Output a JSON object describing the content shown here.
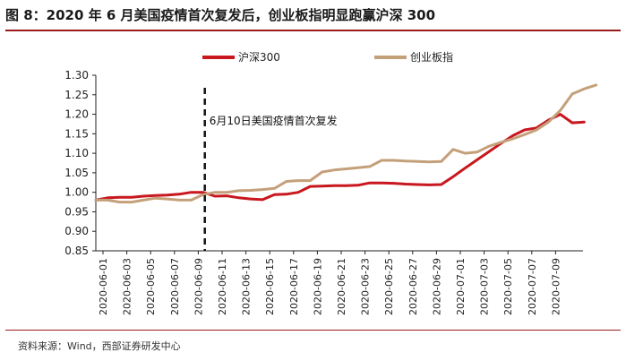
{
  "figure": {
    "title": "图 8：2020 年 6 月美国疫情首次复发后，创业板指明显跑赢沪深 300",
    "source": "资料来源：Wind，西部证券研发中心"
  },
  "colors": {
    "hs300": "#c8171e",
    "chinext": "#c4a07a",
    "rule": "#9b1b1b",
    "axis": "#222222"
  },
  "chart_data": {
    "type": "line",
    "title": "",
    "xlabel": "",
    "ylabel": "",
    "ylim": [
      0.85,
      1.3
    ],
    "yticks": [
      "0.85",
      "0.90",
      "0.95",
      "1.00",
      "1.05",
      "1.10",
      "1.15",
      "1.20",
      "1.25",
      "1.30"
    ],
    "x_tick_labels": [
      "2020-06-01",
      "2020-06-03",
      "2020-06-05",
      "2020-06-07",
      "2020-06-09",
      "2020-06-11",
      "2020-06-13",
      "2020-06-15",
      "2020-06-17",
      "2020-06-19",
      "2020-06-21",
      "2020-06-23",
      "2020-06-25",
      "2020-06-27",
      "2020-06-29",
      "2020-07-01",
      "2020-07-03",
      "2020-07-05",
      "2020-07-07",
      "2020-07-09"
    ],
    "x_start": "2020-06-01",
    "x_end": "2020-07-10",
    "legend": {
      "position": "top-center"
    },
    "annotation": {
      "date_index": 9.15,
      "label": "6月10日美国疫情首次复发"
    },
    "series": [
      {
        "name": "沪深300",
        "color_key": "hs300",
        "points": [
          [
            0,
            0.98
          ],
          [
            1,
            0.986
          ],
          [
            2,
            0.987
          ],
          [
            3,
            0.987
          ],
          [
            4,
            0.99
          ],
          [
            5,
            0.992
          ],
          [
            6,
            0.993
          ],
          [
            7,
            0.995
          ],
          [
            8,
            1.0
          ],
          [
            9,
            1.0
          ],
          [
            10,
            0.99
          ],
          [
            11,
            0.991
          ],
          [
            12,
            0.986
          ],
          [
            13,
            0.983
          ],
          [
            14,
            0.981
          ],
          [
            15,
            0.994
          ],
          [
            16,
            0.995
          ],
          [
            17,
            1.0
          ],
          [
            18,
            1.015
          ],
          [
            19,
            1.016
          ],
          [
            20,
            1.017
          ],
          [
            21,
            1.017
          ],
          [
            22,
            1.018
          ],
          [
            23,
            1.024
          ],
          [
            24,
            1.024
          ],
          [
            25,
            1.023
          ],
          [
            26,
            1.021
          ],
          [
            27,
            1.02
          ],
          [
            28,
            1.019
          ],
          [
            29,
            1.02
          ],
          [
            30,
            1.04
          ],
          [
            31,
            1.062
          ],
          [
            32,
            1.083
          ],
          [
            33,
            1.104
          ],
          [
            34,
            1.125
          ],
          [
            35,
            1.145
          ],
          [
            36,
            1.16
          ],
          [
            37,
            1.165
          ],
          [
            38,
            1.185
          ],
          [
            39,
            1.2
          ],
          [
            40,
            1.178
          ],
          [
            41,
            1.18
          ]
        ]
      },
      {
        "name": "创业板指",
        "color_key": "chinext",
        "points": [
          [
            0,
            0.98
          ],
          [
            1,
            0.98
          ],
          [
            2,
            0.975
          ],
          [
            3,
            0.975
          ],
          [
            4,
            0.98
          ],
          [
            5,
            0.985
          ],
          [
            6,
            0.983
          ],
          [
            7,
            0.98
          ],
          [
            8,
            0.98
          ],
          [
            9,
            0.994
          ],
          [
            10,
            1.0
          ],
          [
            11,
            1.0
          ],
          [
            12,
            1.004
          ],
          [
            13,
            1.005
          ],
          [
            14,
            1.007
          ],
          [
            15,
            1.01
          ],
          [
            16,
            1.028
          ],
          [
            17,
            1.03
          ],
          [
            18,
            1.03
          ],
          [
            19,
            1.052
          ],
          [
            20,
            1.057
          ],
          [
            21,
            1.06
          ],
          [
            22,
            1.063
          ],
          [
            23,
            1.066
          ],
          [
            24,
            1.082
          ],
          [
            25,
            1.082
          ],
          [
            26,
            1.08
          ],
          [
            27,
            1.079
          ],
          [
            28,
            1.078
          ],
          [
            29,
            1.079
          ],
          [
            30,
            1.11
          ],
          [
            31,
            1.1
          ],
          [
            32,
            1.103
          ],
          [
            33,
            1.118
          ],
          [
            34,
            1.128
          ],
          [
            35,
            1.137
          ],
          [
            36,
            1.148
          ],
          [
            37,
            1.16
          ],
          [
            38,
            1.18
          ],
          [
            39,
            1.21
          ],
          [
            40,
            1.252
          ],
          [
            41,
            1.265
          ],
          [
            42,
            1.275
          ]
        ]
      }
    ]
  }
}
